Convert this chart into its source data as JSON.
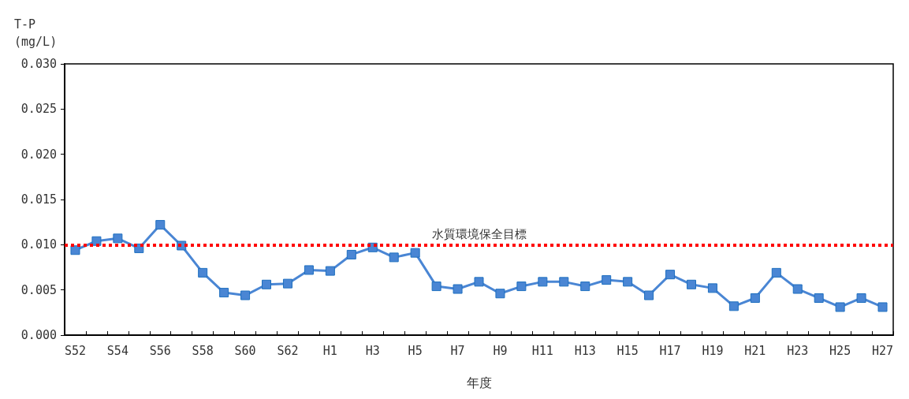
{
  "chart_data": {
    "type": "line",
    "ylabel": "T-P\n(mg/L)",
    "xlabel": "年度",
    "categories": [
      "S52",
      null,
      "S54",
      null,
      "S56",
      null,
      "S58",
      null,
      "S60",
      null,
      "S62",
      null,
      "H1",
      null,
      "H3",
      null,
      "H5",
      null,
      "H7",
      null,
      "H9",
      null,
      "H11",
      null,
      "H13",
      null,
      "H15",
      null,
      "H17",
      null,
      "H19",
      null,
      "H21",
      null,
      "H23",
      null,
      "H25",
      null,
      "H27"
    ],
    "series": [
      {
        "color": "#4a86d4",
        "values": [
          0.0094,
          0.0104,
          0.0107,
          0.0096,
          0.0122,
          0.0099,
          0.0069,
          0.0047,
          0.0044,
          0.0056,
          0.0057,
          0.0072,
          0.0071,
          0.0089,
          0.0097,
          0.0086,
          0.0091,
          0.0054,
          0.0051,
          0.0059,
          0.0046,
          0.0054,
          0.0059,
          0.0059,
          0.0054,
          0.0061,
          0.0059,
          0.0044,
          0.0067,
          0.0056,
          0.0052,
          0.0032,
          0.0041,
          0.0069,
          0.0051,
          0.0041,
          0.0031,
          0.0041,
          0.0031
        ]
      }
    ],
    "ylim": [
      0,
      0.03
    ],
    "yticks": [
      {
        "value": 0,
        "label": "0.000"
      },
      {
        "value": 0.005,
        "label": "0.005"
      },
      {
        "value": 0.01,
        "label": "0.010"
      },
      {
        "value": 0.015,
        "label": "0.015"
      },
      {
        "value": 0.02,
        "label": "0.020"
      },
      {
        "value": 0.025,
        "label": "0.025"
      },
      {
        "value": 0.03,
        "label": "0.030"
      }
    ],
    "ref_lines": [
      {
        "axis": "y",
        "value": 0.01,
        "label": "水質環境保全目標",
        "color": "#ff0000",
        "line_style": "dotted"
      }
    ],
    "marker": "square",
    "line_style": "solid",
    "grid": false
  }
}
